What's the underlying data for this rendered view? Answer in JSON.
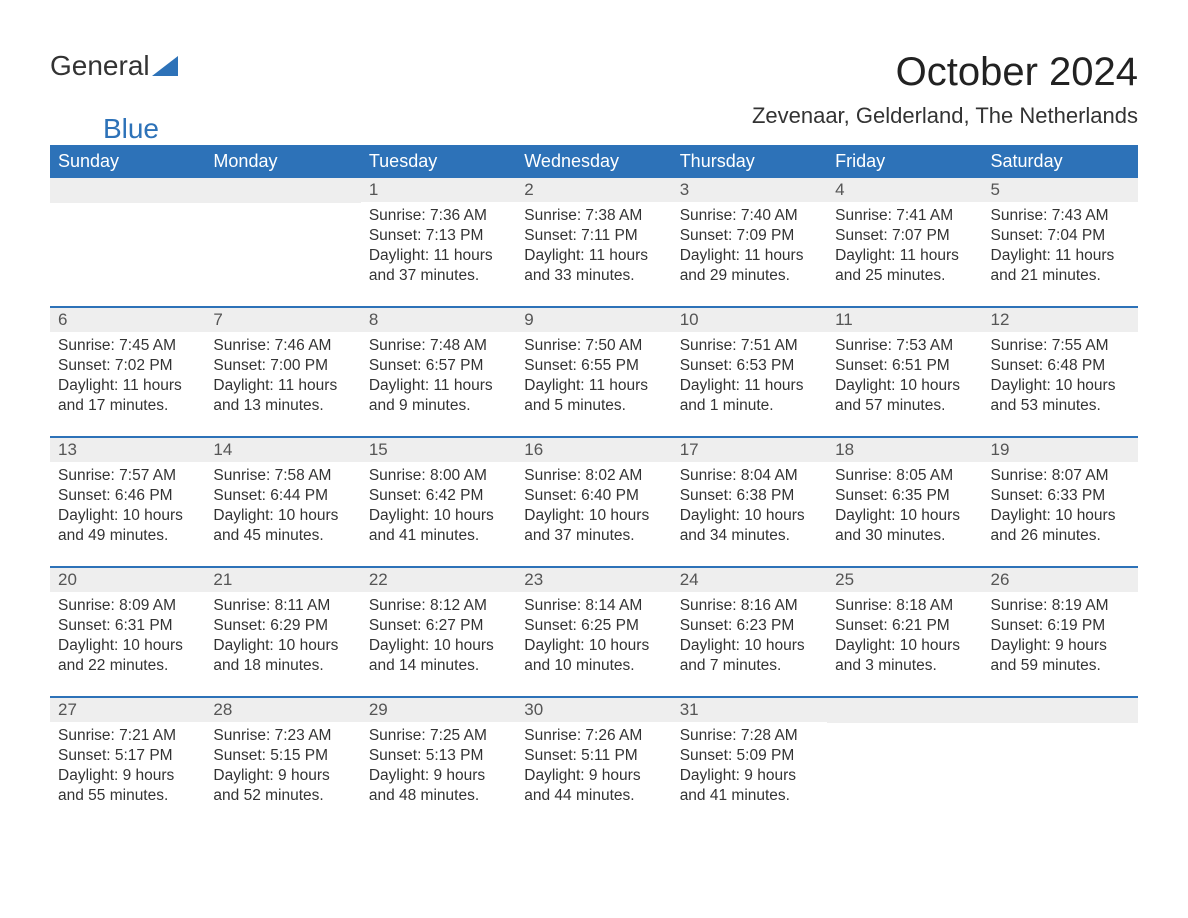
{
  "logo": {
    "general": "General",
    "blue": "Blue"
  },
  "title": "October 2024",
  "location": "Zevenaar, Gelderland, The Netherlands",
  "dayNames": [
    "Sunday",
    "Monday",
    "Tuesday",
    "Wednesday",
    "Thursday",
    "Friday",
    "Saturday"
  ],
  "styling": {
    "brandBlue": "#2d72b8",
    "headerBg": "#2d72b8",
    "headerText": "#ffffff",
    "dayNumBg": "#eeeeee",
    "dayNumColor": "#555555",
    "bodyText": "#333333",
    "rowDivider": "#2d72b8",
    "titleFontSize": 40,
    "locationFontSize": 22,
    "thFontSize": 18,
    "cellFontSize": 15.5
  },
  "weeks": [
    [
      {
        "day": "",
        "lines": []
      },
      {
        "day": "",
        "lines": []
      },
      {
        "day": "1",
        "lines": [
          "Sunrise: 7:36 AM",
          "Sunset: 7:13 PM",
          "Daylight: 11 hours and 37 minutes."
        ]
      },
      {
        "day": "2",
        "lines": [
          "Sunrise: 7:38 AM",
          "Sunset: 7:11 PM",
          "Daylight: 11 hours and 33 minutes."
        ]
      },
      {
        "day": "3",
        "lines": [
          "Sunrise: 7:40 AM",
          "Sunset: 7:09 PM",
          "Daylight: 11 hours and 29 minutes."
        ]
      },
      {
        "day": "4",
        "lines": [
          "Sunrise: 7:41 AM",
          "Sunset: 7:07 PM",
          "Daylight: 11 hours and 25 minutes."
        ]
      },
      {
        "day": "5",
        "lines": [
          "Sunrise: 7:43 AM",
          "Sunset: 7:04 PM",
          "Daylight: 11 hours and 21 minutes."
        ]
      }
    ],
    [
      {
        "day": "6",
        "lines": [
          "Sunrise: 7:45 AM",
          "Sunset: 7:02 PM",
          "Daylight: 11 hours and 17 minutes."
        ]
      },
      {
        "day": "7",
        "lines": [
          "Sunrise: 7:46 AM",
          "Sunset: 7:00 PM",
          "Daylight: 11 hours and 13 minutes."
        ]
      },
      {
        "day": "8",
        "lines": [
          "Sunrise: 7:48 AM",
          "Sunset: 6:57 PM",
          "Daylight: 11 hours and 9 minutes."
        ]
      },
      {
        "day": "9",
        "lines": [
          "Sunrise: 7:50 AM",
          "Sunset: 6:55 PM",
          "Daylight: 11 hours and 5 minutes."
        ]
      },
      {
        "day": "10",
        "lines": [
          "Sunrise: 7:51 AM",
          "Sunset: 6:53 PM",
          "Daylight: 11 hours and 1 minute."
        ]
      },
      {
        "day": "11",
        "lines": [
          "Sunrise: 7:53 AM",
          "Sunset: 6:51 PM",
          "Daylight: 10 hours and 57 minutes."
        ]
      },
      {
        "day": "12",
        "lines": [
          "Sunrise: 7:55 AM",
          "Sunset: 6:48 PM",
          "Daylight: 10 hours and 53 minutes."
        ]
      }
    ],
    [
      {
        "day": "13",
        "lines": [
          "Sunrise: 7:57 AM",
          "Sunset: 6:46 PM",
          "Daylight: 10 hours and 49 minutes."
        ]
      },
      {
        "day": "14",
        "lines": [
          "Sunrise: 7:58 AM",
          "Sunset: 6:44 PM",
          "Daylight: 10 hours and 45 minutes."
        ]
      },
      {
        "day": "15",
        "lines": [
          "Sunrise: 8:00 AM",
          "Sunset: 6:42 PM",
          "Daylight: 10 hours and 41 minutes."
        ]
      },
      {
        "day": "16",
        "lines": [
          "Sunrise: 8:02 AM",
          "Sunset: 6:40 PM",
          "Daylight: 10 hours and 37 minutes."
        ]
      },
      {
        "day": "17",
        "lines": [
          "Sunrise: 8:04 AM",
          "Sunset: 6:38 PM",
          "Daylight: 10 hours and 34 minutes."
        ]
      },
      {
        "day": "18",
        "lines": [
          "Sunrise: 8:05 AM",
          "Sunset: 6:35 PM",
          "Daylight: 10 hours and 30 minutes."
        ]
      },
      {
        "day": "19",
        "lines": [
          "Sunrise: 8:07 AM",
          "Sunset: 6:33 PM",
          "Daylight: 10 hours and 26 minutes."
        ]
      }
    ],
    [
      {
        "day": "20",
        "lines": [
          "Sunrise: 8:09 AM",
          "Sunset: 6:31 PM",
          "Daylight: 10 hours and 22 minutes."
        ]
      },
      {
        "day": "21",
        "lines": [
          "Sunrise: 8:11 AM",
          "Sunset: 6:29 PM",
          "Daylight: 10 hours and 18 minutes."
        ]
      },
      {
        "day": "22",
        "lines": [
          "Sunrise: 8:12 AM",
          "Sunset: 6:27 PM",
          "Daylight: 10 hours and 14 minutes."
        ]
      },
      {
        "day": "23",
        "lines": [
          "Sunrise: 8:14 AM",
          "Sunset: 6:25 PM",
          "Daylight: 10 hours and 10 minutes."
        ]
      },
      {
        "day": "24",
        "lines": [
          "Sunrise: 8:16 AM",
          "Sunset: 6:23 PM",
          "Daylight: 10 hours and 7 minutes."
        ]
      },
      {
        "day": "25",
        "lines": [
          "Sunrise: 8:18 AM",
          "Sunset: 6:21 PM",
          "Daylight: 10 hours and 3 minutes."
        ]
      },
      {
        "day": "26",
        "lines": [
          "Sunrise: 8:19 AM",
          "Sunset: 6:19 PM",
          "Daylight: 9 hours and 59 minutes."
        ]
      }
    ],
    [
      {
        "day": "27",
        "lines": [
          "Sunrise: 7:21 AM",
          "Sunset: 5:17 PM",
          "Daylight: 9 hours and 55 minutes."
        ]
      },
      {
        "day": "28",
        "lines": [
          "Sunrise: 7:23 AM",
          "Sunset: 5:15 PM",
          "Daylight: 9 hours and 52 minutes."
        ]
      },
      {
        "day": "29",
        "lines": [
          "Sunrise: 7:25 AM",
          "Sunset: 5:13 PM",
          "Daylight: 9 hours and 48 minutes."
        ]
      },
      {
        "day": "30",
        "lines": [
          "Sunrise: 7:26 AM",
          "Sunset: 5:11 PM",
          "Daylight: 9 hours and 44 minutes."
        ]
      },
      {
        "day": "31",
        "lines": [
          "Sunrise: 7:28 AM",
          "Sunset: 5:09 PM",
          "Daylight: 9 hours and 41 minutes."
        ]
      },
      {
        "day": "",
        "lines": []
      },
      {
        "day": "",
        "lines": []
      }
    ]
  ]
}
